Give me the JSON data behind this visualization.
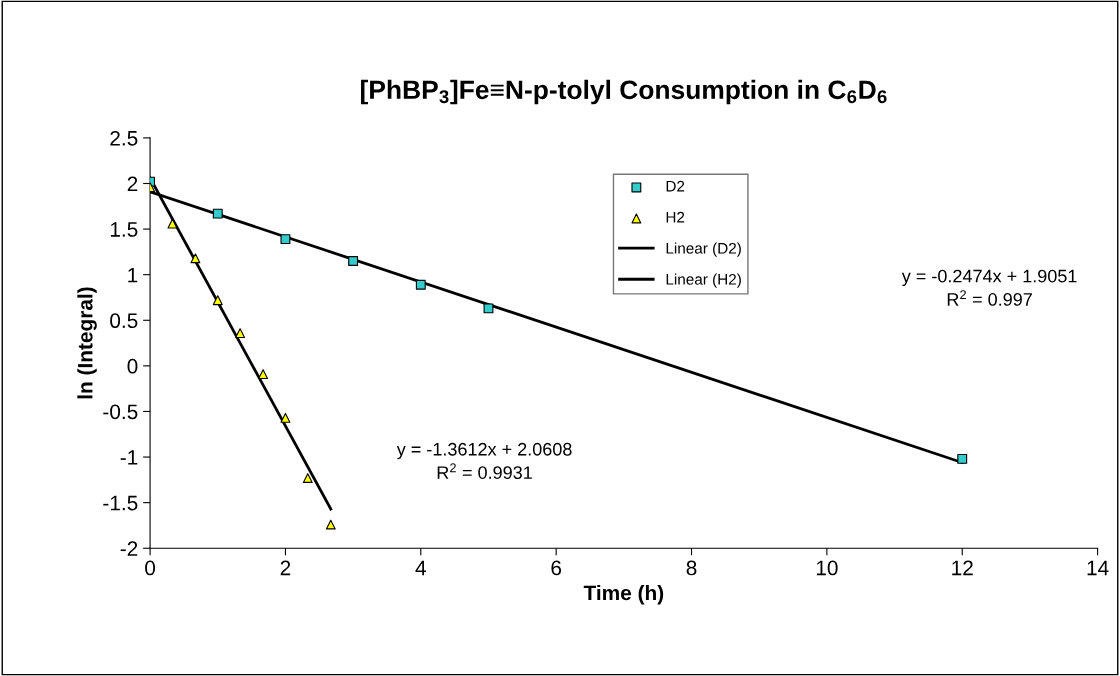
{
  "chart_data": {
    "type": "scatter",
    "title": "[PhBP$_{3}$]Fe≡N-p-tolyl Consumption in C$_{6}$D$_{6}$",
    "xlabel": "Time (h)",
    "ylabel": "ln (Integral)",
    "xlim": [
      0,
      14
    ],
    "xticks": [
      0,
      2,
      4,
      6,
      8,
      10,
      12,
      14
    ],
    "ylim": [
      -2,
      2.5
    ],
    "yticks": [
      -2,
      -1.5,
      -1,
      -0.5,
      0,
      0.5,
      1,
      1.5,
      2,
      2.5
    ],
    "grid": false,
    "legend": "top",
    "series": [
      {
        "name": "D2",
        "marker": "square",
        "color": "#33cccc",
        "x": [
          0,
          1,
          2,
          3,
          4,
          5,
          12
        ],
        "values": [
          2.02,
          1.67,
          1.39,
          1.15,
          0.89,
          0.63,
          -1.02
        ]
      },
      {
        "name": "H2",
        "marker": "triangle",
        "color": "#ffff00",
        "x": [
          0,
          0.33,
          0.67,
          1,
          1.33,
          1.67,
          2,
          2.33,
          2.67
        ],
        "values": [
          1.96,
          1.56,
          1.18,
          0.72,
          0.36,
          -0.09,
          -0.57,
          -1.23,
          -1.74
        ]
      },
      {
        "name": "Linear (D2)",
        "type": "line",
        "marker": "none",
        "line_style": "solid",
        "color": "#000000",
        "x": [
          0,
          12
        ],
        "values": [
          1.91,
          -1.06
        ]
      },
      {
        "name": "Linear (H2)",
        "type": "line",
        "marker": "none",
        "line_style": "solid",
        "color": "#000000",
        "x": [
          0,
          2.67
        ],
        "values": [
          2.06,
          -1.57
        ]
      }
    ],
    "annotations": [
      "y = -0.2474x + 1.9051\nR$^{2}$ = 0.997",
      "y = -1.3612x + 2.0608\nR$^{2}$ = 0.9931"
    ]
  }
}
